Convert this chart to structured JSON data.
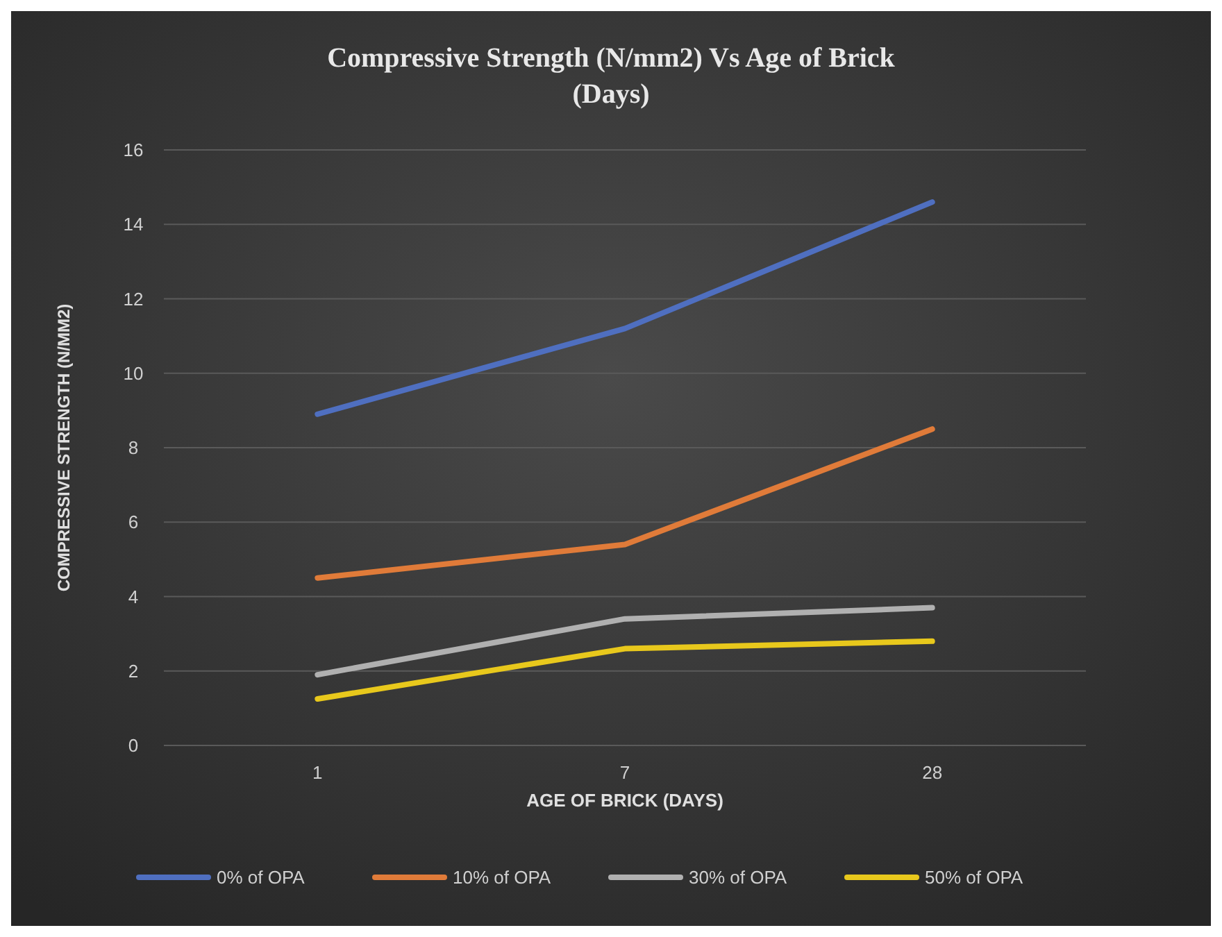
{
  "chart_data": {
    "type": "line",
    "title": "Compressive Strength (N/mm2) Vs Age of Brick (Days)",
    "xlabel": "AGE OF BRICK (DAYS)",
    "ylabel": "COMPRESSIVE STRENGTH (N/MM2)",
    "categories": [
      "1",
      "7",
      "28"
    ],
    "series": [
      {
        "name": "0% of OPA",
        "color": "#4f6fc0",
        "values": [
          8.9,
          11.2,
          14.6
        ]
      },
      {
        "name": "10% of OPA",
        "color": "#e07b39",
        "values": [
          4.5,
          5.4,
          8.5
        ]
      },
      {
        "name": "30% of OPA",
        "color": "#b0b0b0",
        "values": [
          1.9,
          3.4,
          3.7
        ]
      },
      {
        "name": "50% of OPA",
        "color": "#e8c81c",
        "values": [
          1.25,
          2.6,
          2.8
        ]
      }
    ],
    "ylim": [
      0,
      16
    ],
    "yticks": [
      0,
      2,
      4,
      6,
      8,
      10,
      12,
      14,
      16
    ],
    "grid": "y",
    "legend": "bottom",
    "marker": "none",
    "line_style": "solid"
  }
}
